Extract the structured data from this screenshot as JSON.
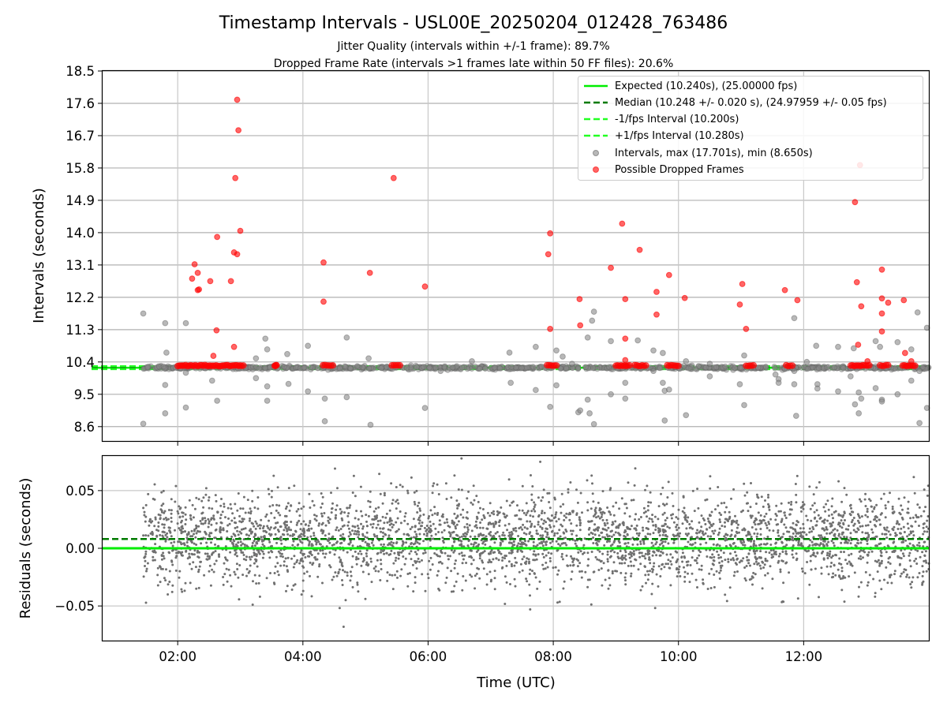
{
  "chart_data": [
    {
      "type": "scatter",
      "title": "Timestamp Intervals - USL00E_20250204_012428_763486",
      "subtitle_lines": [
        "Jitter Quality (intervals within +/-1 frame): 89.7%",
        "Dropped Frame Rate (intervals >1 frames late within 50 FF files): 20.6%"
      ],
      "ylabel": "Intervals (seconds)",
      "xlim_hours": [
        0.8,
        14.0
      ],
      "ylim": [
        8.2,
        18.5
      ],
      "y_ticks": [
        8.6,
        9.5,
        10.4,
        11.3,
        12.2,
        13.1,
        14.0,
        14.9,
        15.8,
        16.7,
        17.6,
        18.5
      ],
      "y_tick_labels": [
        "8.6",
        "9.5",
        "10.4",
        "11.3",
        "12.2",
        "13.1",
        "14.0",
        "14.9",
        "15.8",
        "16.7",
        "17.6",
        "18.5"
      ],
      "grid": true,
      "legend_position": "top-right",
      "colors": {
        "expected": "#00ee00",
        "median": "#007a00",
        "fps_interval": "#22ff22",
        "intervals": "#888888",
        "dropped": "#ff0000"
      },
      "lines": [
        {
          "name": "Expected (10.240s), (25.00000 fps)",
          "y": 10.24,
          "style": "solid"
        },
        {
          "name": "Median (10.248 +/- 0.020 s), (24.97959 +/- 0.05 fps)",
          "y": 10.248,
          "style": "dashed"
        },
        {
          "name": "-1/fps Interval (10.200s)",
          "y": 10.2,
          "style": "dashed"
        },
        {
          "name": "+1/fps Interval (10.280s)",
          "y": 10.28,
          "style": "dashed"
        }
      ],
      "series": [
        {
          "name": "Intervals, max (17.701s), min (8.650s)",
          "points": [
            [
              1.45,
              11.75
            ],
            [
              1.45,
              8.68
            ],
            [
              1.8,
              11.48
            ],
            [
              1.82,
              10.66
            ],
            [
              1.8,
              9.76
            ],
            [
              1.8,
              8.97
            ],
            [
              2.13,
              11.48
            ],
            [
              2.13,
              10.1
            ],
            [
              2.13,
              9.13
            ],
            [
              2.55,
              9.88
            ],
            [
              2.63,
              9.32
            ],
            [
              3.25,
              10.5
            ],
            [
              3.25,
              9.95
            ],
            [
              3.4,
              11.05
            ],
            [
              3.43,
              10.75
            ],
            [
              3.43,
              9.72
            ],
            [
              3.43,
              9.32
            ],
            [
              3.75,
              10.62
            ],
            [
              3.77,
              9.79
            ],
            [
              4.08,
              10.85
            ],
            [
              4.08,
              9.58
            ],
            [
              4.35,
              9.38
            ],
            [
              4.35,
              8.75
            ],
            [
              4.7,
              11.08
            ],
            [
              4.7,
              9.42
            ],
            [
              5.05,
              10.5
            ],
            [
              5.08,
              8.65
            ],
            [
              5.95,
              9.12
            ],
            [
              6.2,
              10.15
            ],
            [
              6.7,
              10.42
            ],
            [
              7.3,
              10.66
            ],
            [
              7.32,
              9.82
            ],
            [
              7.72,
              10.82
            ],
            [
              7.72,
              9.62
            ],
            [
              7.95,
              9.15
            ],
            [
              8.05,
              10.72
            ],
            [
              8.05,
              9.75
            ],
            [
              8.15,
              10.55
            ],
            [
              8.3,
              10.35
            ],
            [
              8.4,
              9.0
            ],
            [
              8.43,
              9.05
            ],
            [
              8.55,
              11.08
            ],
            [
              8.55,
              9.35
            ],
            [
              8.58,
              8.97
            ],
            [
              8.62,
              11.55
            ],
            [
              8.65,
              11.8
            ],
            [
              8.65,
              8.67
            ],
            [
              8.92,
              10.98
            ],
            [
              8.92,
              9.5
            ],
            [
              9.15,
              9.82
            ],
            [
              9.15,
              9.38
            ],
            [
              9.35,
              11.0
            ],
            [
              9.6,
              10.72
            ],
            [
              9.6,
              10.15
            ],
            [
              9.75,
              10.65
            ],
            [
              9.75,
              9.82
            ],
            [
              9.78,
              9.6
            ],
            [
              9.78,
              8.77
            ],
            [
              9.85,
              9.63
            ],
            [
              10.12,
              10.42
            ],
            [
              10.12,
              8.92
            ],
            [
              10.5,
              10.35
            ],
            [
              10.5,
              10.0
            ],
            [
              10.98,
              9.78
            ],
            [
              11.05,
              10.58
            ],
            [
              11.05,
              9.2
            ],
            [
              11.55,
              10.05
            ],
            [
              11.6,
              9.92
            ],
            [
              11.6,
              9.82
            ],
            [
              11.85,
              11.62
            ],
            [
              11.85,
              10.15
            ],
            [
              11.85,
              9.78
            ],
            [
              11.88,
              8.9
            ],
            [
              12.05,
              10.4
            ],
            [
              12.2,
              10.85
            ],
            [
              12.22,
              9.78
            ],
            [
              12.22,
              9.66
            ],
            [
              12.55,
              10.82
            ],
            [
              12.55,
              9.58
            ],
            [
              12.75,
              10.0
            ],
            [
              12.8,
              10.78
            ],
            [
              12.82,
              9.22
            ],
            [
              12.88,
              9.55
            ],
            [
              12.88,
              8.97
            ],
            [
              12.92,
              9.38
            ],
            [
              13.15,
              10.98
            ],
            [
              13.15,
              9.67
            ],
            [
              13.22,
              10.82
            ],
            [
              13.25,
              9.35
            ],
            [
              13.25,
              9.3
            ],
            [
              13.5,
              10.95
            ],
            [
              13.5,
              9.5
            ],
            [
              13.72,
              10.75
            ],
            [
              13.72,
              9.88
            ],
            [
              13.82,
              11.78
            ],
            [
              13.85,
              10.15
            ],
            [
              13.85,
              8.7
            ],
            [
              13.97,
              11.35
            ],
            [
              13.97,
              9.12
            ]
          ]
        },
        {
          "name": "Possible Dropped Frames",
          "points": [
            [
              2.23,
              12.72
            ],
            [
              2.27,
              13.12
            ],
            [
              2.32,
              12.88
            ],
            [
              2.32,
              12.4
            ],
            [
              2.34,
              12.42
            ],
            [
              2.52,
              12.65
            ],
            [
              2.57,
              10.57
            ],
            [
              2.62,
              11.28
            ],
            [
              2.63,
              13.88
            ],
            [
              2.85,
              12.65
            ],
            [
              2.9,
              13.45
            ],
            [
              2.9,
              10.82
            ],
            [
              2.92,
              15.52
            ],
            [
              2.95,
              13.4
            ],
            [
              2.95,
              17.7
            ],
            [
              2.97,
              16.85
            ],
            [
              3.0,
              14.05
            ],
            [
              4.33,
              13.17
            ],
            [
              4.33,
              12.08
            ],
            [
              5.07,
              12.88
            ],
            [
              5.45,
              15.52
            ],
            [
              5.95,
              12.5
            ],
            [
              7.92,
              13.4
            ],
            [
              7.95,
              13.98
            ],
            [
              7.95,
              11.32
            ],
            [
              8.42,
              12.15
            ],
            [
              8.43,
              11.42
            ],
            [
              8.92,
              13.02
            ],
            [
              9.1,
              14.25
            ],
            [
              9.15,
              12.15
            ],
            [
              9.15,
              11.05
            ],
            [
              9.15,
              10.45
            ],
            [
              9.38,
              13.52
            ],
            [
              9.65,
              12.35
            ],
            [
              9.65,
              11.72
            ],
            [
              9.85,
              12.82
            ],
            [
              10.1,
              12.18
            ],
            [
              10.98,
              12.0
            ],
            [
              11.02,
              12.57
            ],
            [
              11.08,
              11.32
            ],
            [
              11.7,
              12.4
            ],
            [
              11.9,
              12.12
            ],
            [
              12.82,
              14.85
            ],
            [
              12.85,
              12.62
            ],
            [
              12.87,
              10.88
            ],
            [
              12.9,
              15.88
            ],
            [
              12.92,
              11.95
            ],
            [
              13.02,
              10.42
            ],
            [
              13.25,
              12.97
            ],
            [
              13.25,
              12.17
            ],
            [
              13.25,
              11.75
            ],
            [
              13.25,
              11.25
            ],
            [
              13.35,
              12.05
            ],
            [
              13.6,
              12.12
            ],
            [
              13.62,
              10.65
            ],
            [
              13.72,
              10.42
            ]
          ],
          "clusters": [
            [
              2.0,
              3.05
            ],
            [
              3.55,
              3.58
            ],
            [
              4.32,
              4.48
            ],
            [
              5.42,
              5.55
            ],
            [
              7.9,
              8.05
            ],
            [
              9.0,
              9.22
            ],
            [
              9.3,
              9.48
            ],
            [
              9.82,
              10.0
            ],
            [
              11.08,
              11.2
            ],
            [
              11.72,
              11.82
            ],
            [
              12.75,
              13.05
            ],
            [
              13.22,
              13.35
            ],
            [
              13.58,
              13.78
            ]
          ]
        }
      ]
    },
    {
      "type": "scatter",
      "xlabel": "Time (UTC)",
      "ylabel": "Residuals (seconds)",
      "xlim_hours": [
        0.8,
        14.0
      ],
      "ylim": [
        -0.08,
        0.08
      ],
      "y_ticks": [
        -0.05,
        0.0,
        0.05
      ],
      "y_tick_labels": [
        "−0.05",
        "0.00",
        "0.05"
      ],
      "x_ticks_hours": [
        2,
        4,
        6,
        8,
        10,
        12
      ],
      "x_tick_labels": [
        "02:00",
        "04:00",
        "06:00",
        "08:00",
        "10:00",
        "12:00"
      ],
      "grid": true,
      "lines": [
        {
          "name": "Expected",
          "y": 0.0,
          "style": "solid"
        },
        {
          "name": "Median",
          "y": 0.008,
          "style": "dashed"
        }
      ],
      "series": [
        {
          "name": "Residuals",
          "x_range_hours": [
            1.45,
            14.0
          ],
          "center": 0.008,
          "std": 0.02,
          "count": 3600,
          "seed": 7
        }
      ]
    }
  ]
}
